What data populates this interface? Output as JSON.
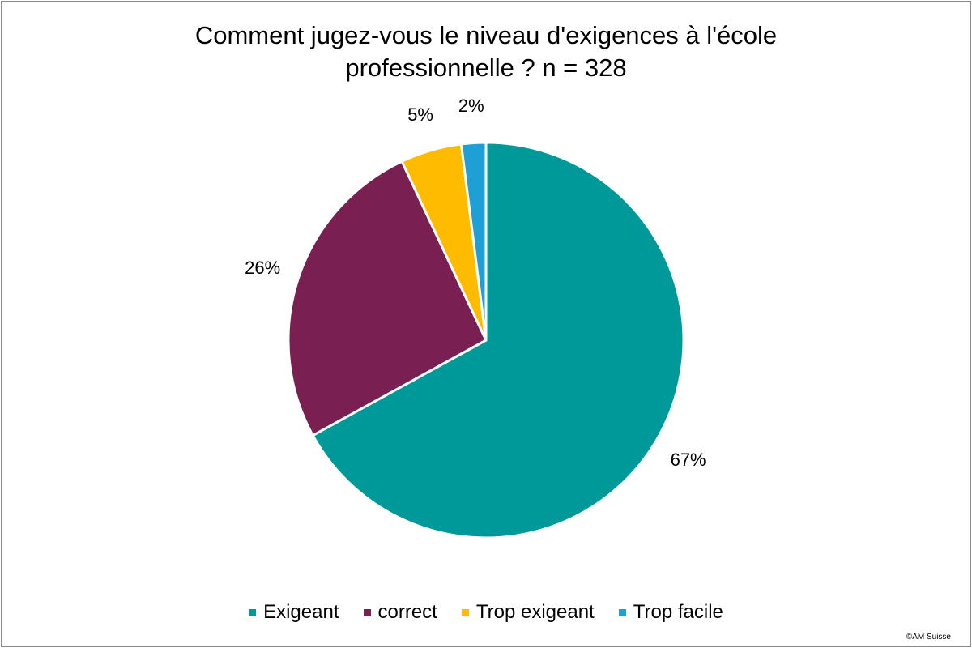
{
  "chart_data": {
    "type": "pie",
    "title_lines": [
      "Comment jugez-vous le niveau d'exigences à l'école",
      "professionnelle ? n = 328"
    ],
    "categories": [
      "Exigeant",
      "correct",
      "Trop exigeant",
      "Trop facile"
    ],
    "values": [
      67,
      26,
      5,
      2
    ],
    "value_labels": [
      "67%",
      "26%",
      "5%",
      "2%"
    ],
    "colors": [
      "#009999",
      "#7a1f52",
      "#ffbb00",
      "#1e9fd6"
    ],
    "start": "12 o'clock",
    "direction": "clockwise",
    "legend_position": "bottom"
  },
  "credit": "©AM Suisse"
}
